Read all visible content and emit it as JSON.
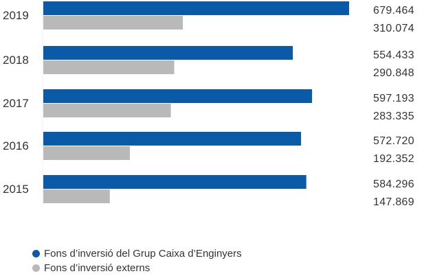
{
  "chart_data": {
    "type": "bar",
    "orientation": "horizontal",
    "categories": [
      "2019",
      "2018",
      "2017",
      "2016",
      "2015"
    ],
    "series": [
      {
        "name": "Fons d’inversió del Grup Caixa d’Enginyers",
        "color": "#0a5aa8",
        "values": [
          679464,
          554433,
          597193,
          572720,
          584296
        ],
        "labels": [
          "679.464",
          "554.433",
          "597.193",
          "572.720",
          "584.296"
        ]
      },
      {
        "name": "Fons d’inversió externs",
        "color": "#b9b9b9",
        "values": [
          310074,
          290848,
          283335,
          192352,
          147869
        ],
        "labels": [
          "310.074",
          "290.848",
          "283.335",
          "192.352",
          "147.869"
        ]
      }
    ],
    "title": "",
    "xlabel": "",
    "ylabel": "",
    "xlim": [
      0,
      679464
    ],
    "grid": false,
    "legend_position": "bottom-left"
  }
}
